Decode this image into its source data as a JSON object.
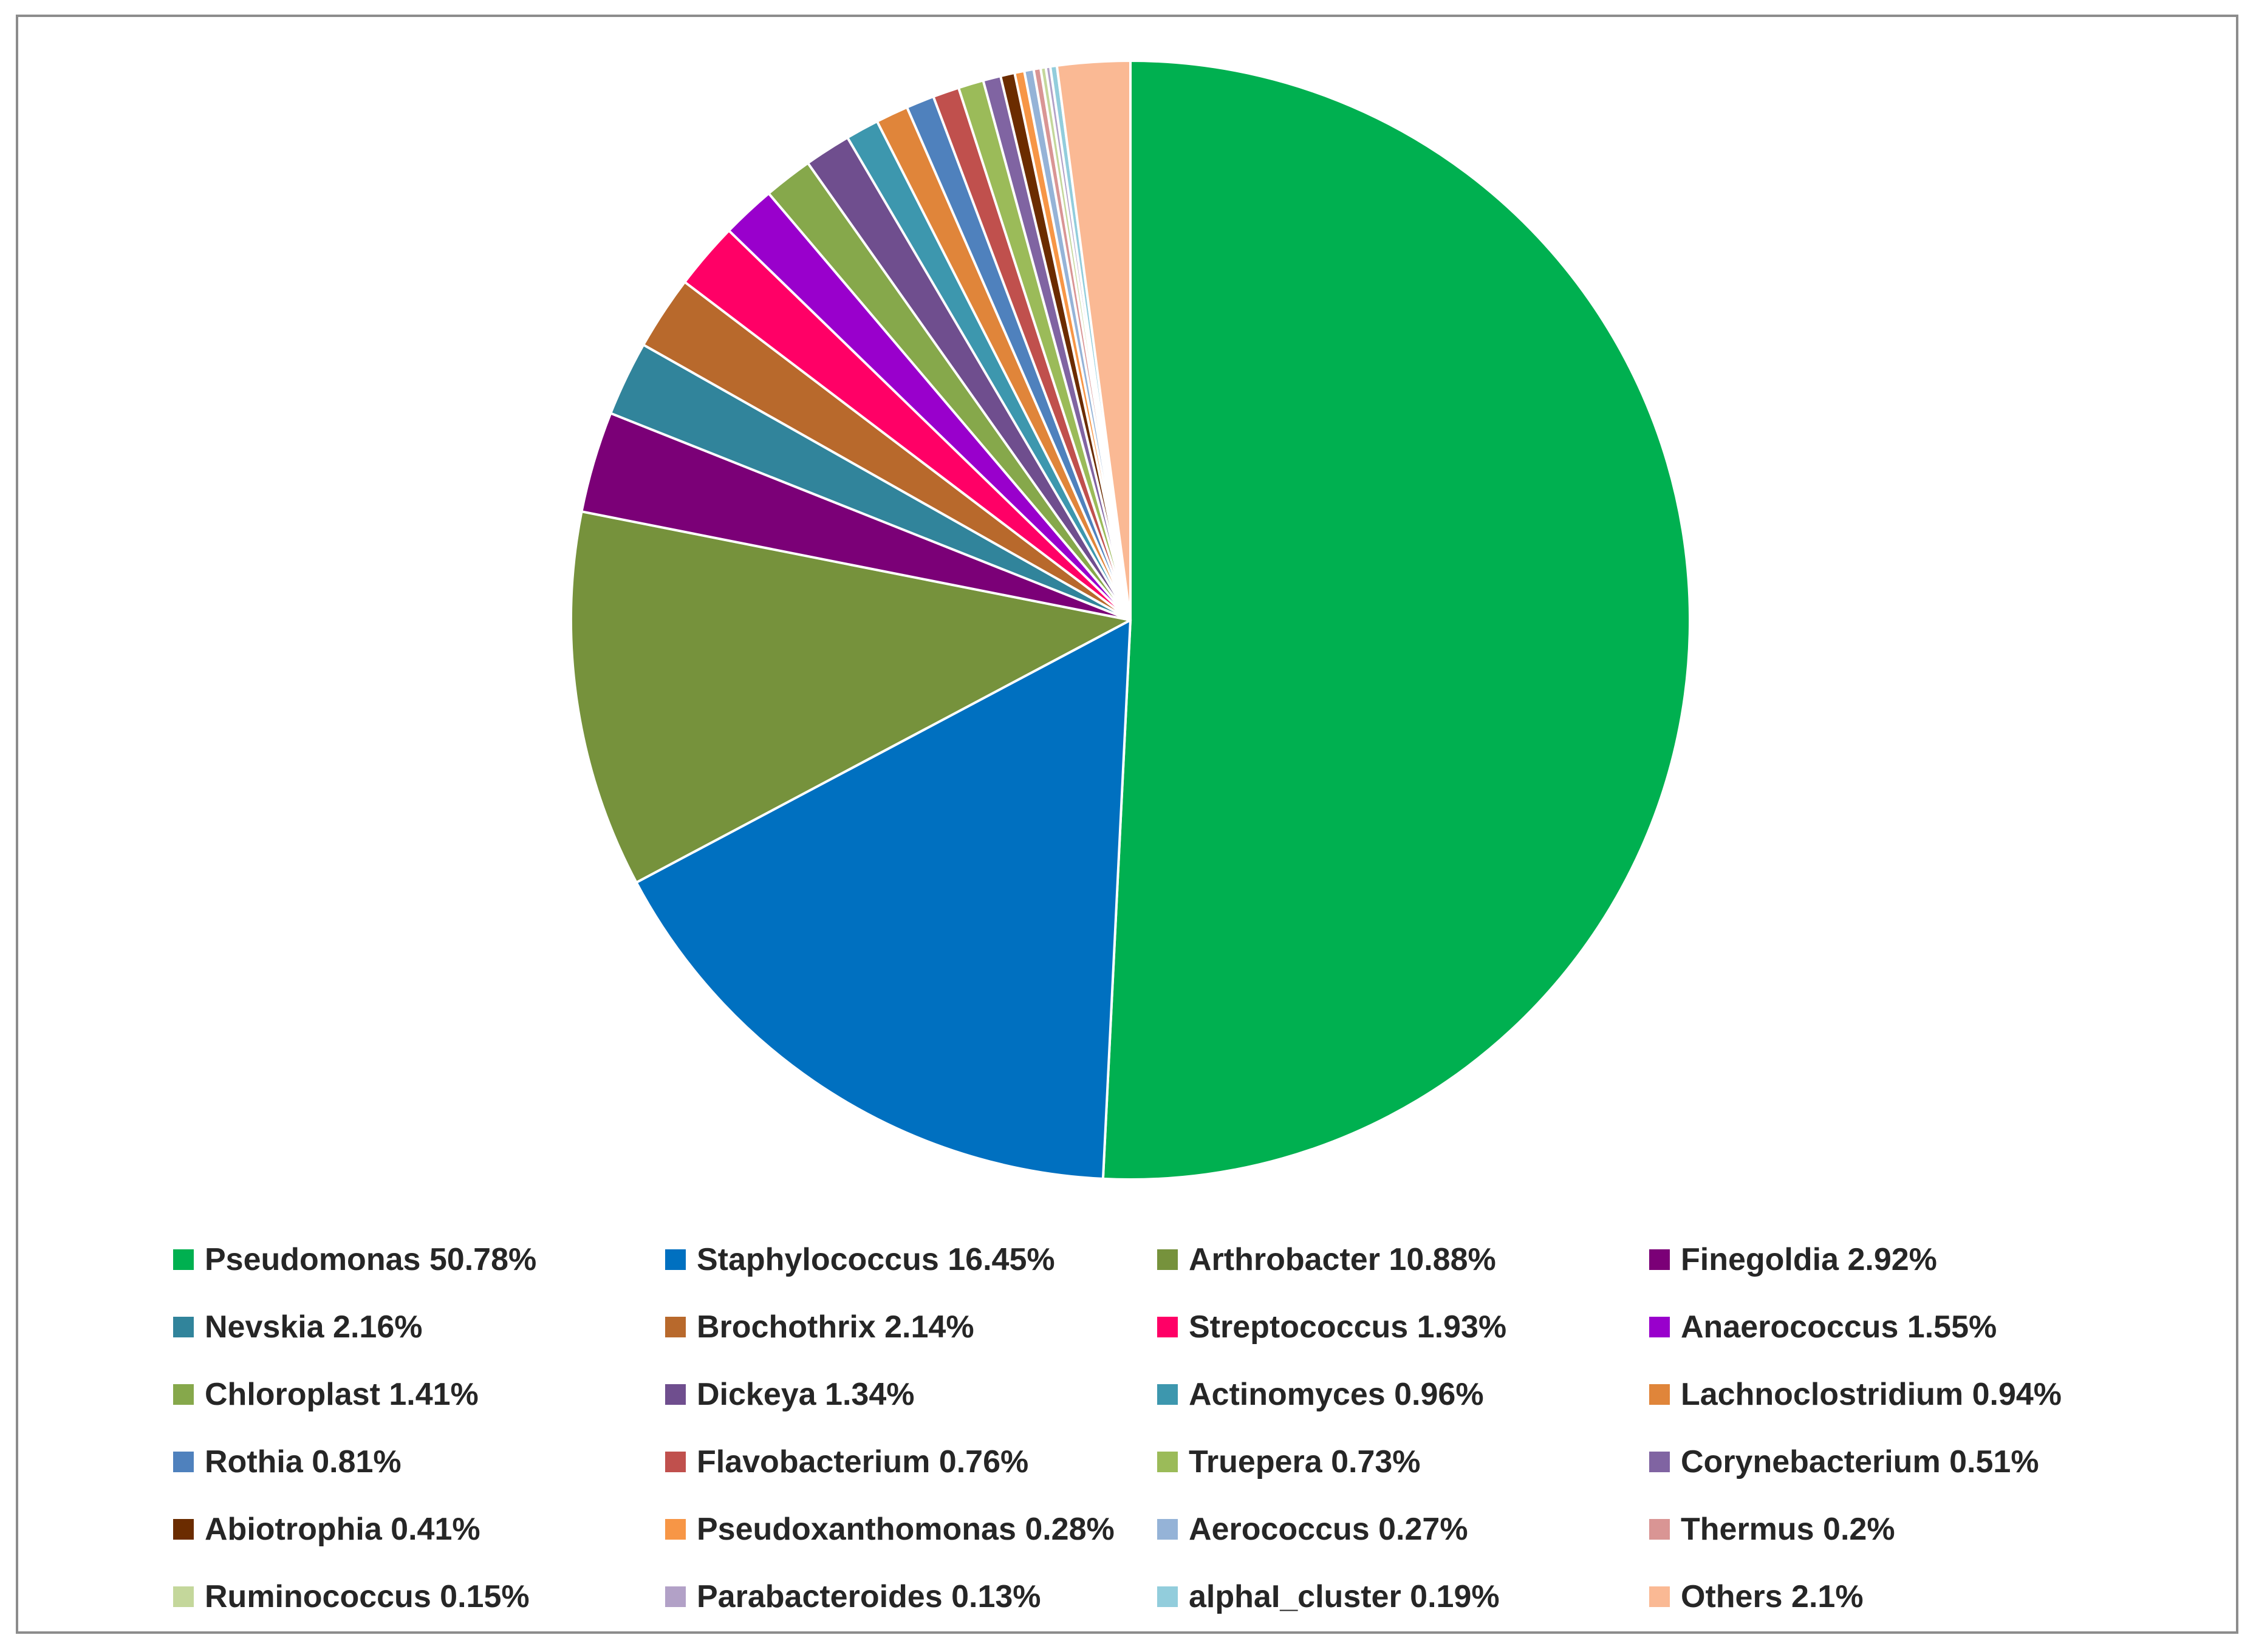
{
  "chart_data": {
    "type": "pie",
    "title": "",
    "legend_position": "bottom",
    "start_angle": "12 o'clock",
    "direction": "clockwise",
    "slices": [
      {
        "label": "Pseudomonas 50.78%",
        "value": 50.78,
        "color": "#00B050"
      },
      {
        "label": "Staphylococcus 16.45%",
        "value": 16.45,
        "color": "#0070C0"
      },
      {
        "label": "Arthrobacter 10.88%",
        "value": 10.88,
        "color": "#76923C"
      },
      {
        "label": "Finegoldia 2.92%",
        "value": 2.92,
        "color": "#7B0077"
      },
      {
        "label": "Nevskia 2.16%",
        "value": 2.16,
        "color": "#31849B"
      },
      {
        "label": "Brochothrix 2.14%",
        "value": 2.14,
        "color": "#B8692C"
      },
      {
        "label": "Streptococcus 1.93%",
        "value": 1.93,
        "color": "#FF0066"
      },
      {
        "label": "Anaerococcus 1.55%",
        "value": 1.55,
        "color": "#9900CC"
      },
      {
        "label": "Chloroplast 1.41%",
        "value": 1.41,
        "color": "#86A84B"
      },
      {
        "label": "Dickeya 1.34%",
        "value": 1.34,
        "color": "#6F4E8E"
      },
      {
        "label": "Actinomyces 0.96%",
        "value": 0.96,
        "color": "#3D97AE"
      },
      {
        "label": "Lachnoclostridium 0.94%",
        "value": 0.94,
        "color": "#E0853A"
      },
      {
        "label": "Rothia 0.81%",
        "value": 0.81,
        "color": "#4F81BD"
      },
      {
        "label": "Flavobacterium 0.76%",
        "value": 0.76,
        "color": "#C0504D"
      },
      {
        "label": "Truepera 0.73%",
        "value": 0.73,
        "color": "#9BBB59"
      },
      {
        "label": "Corynebacterium 0.51%",
        "value": 0.51,
        "color": "#8064A2"
      },
      {
        "label": "Abiotrophia 0.41%",
        "value": 0.41,
        "color": "#6B2C00"
      },
      {
        "label": "Pseudoxanthomonas 0.28%",
        "value": 0.28,
        "color": "#F79646"
      },
      {
        "label": "Aerococcus 0.27%",
        "value": 0.27,
        "color": "#95B3D7"
      },
      {
        "label": "Thermus 0.2%",
        "value": 0.2,
        "color": "#D99594"
      },
      {
        "label": "Ruminococcus 0.15%",
        "value": 0.15,
        "color": "#C4D79B"
      },
      {
        "label": "Parabacteroides 0.13%",
        "value": 0.13,
        "color": "#B2A1C7"
      },
      {
        "label": "alphaI_cluster 0.19%",
        "value": 0.19,
        "color": "#92CDDC"
      },
      {
        "label": "Others 2.1%",
        "value": 2.1,
        "color": "#FAB994"
      }
    ]
  }
}
